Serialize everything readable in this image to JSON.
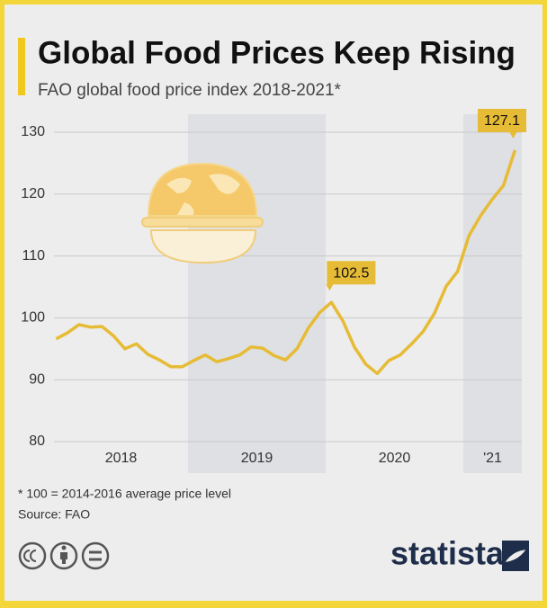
{
  "chart_data": {
    "type": "line",
    "title": "Global Food Prices Keep Rising",
    "subtitle": "FAO global food price index 2018-2021*",
    "categories": [
      null,
      null,
      null,
      null,
      null,
      null,
      null,
      null,
      null,
      null,
      null,
      null,
      null,
      null,
      null,
      null,
      null,
      null,
      null,
      null,
      null,
      null,
      null,
      null,
      null,
      null,
      null,
      null,
      null,
      null,
      null,
      null,
      null,
      null,
      null,
      null,
      null,
      null,
      null,
      null,
      null
    ],
    "period_labels": [
      "2018",
      "2019",
      "2020",
      "'21"
    ],
    "series": [
      {
        "name": "FAO food price index",
        "color": "#e6bb35",
        "values": [
          96.6,
          97.6,
          98.9,
          98.5,
          98.6,
          97.1,
          95.0,
          95.8,
          94.1,
          93.2,
          92.1,
          92.1,
          93.1,
          94.0,
          92.9,
          93.4,
          94.0,
          95.3,
          95.1,
          93.9,
          93.2,
          95.0,
          98.4,
          100.9,
          102.5,
          99.5,
          95.3,
          92.5,
          91.0,
          93.1,
          94.0,
          95.8,
          97.8,
          100.8,
          105.1,
          107.5,
          113.3,
          116.5,
          119.1,
          121.4,
          127.1
        ]
      }
    ],
    "highlight_points": [
      24,
      40
    ],
    "ylim": [
      80,
      130
    ],
    "yticks": [
      80,
      90,
      100,
      110,
      120,
      130
    ],
    "grid": true,
    "notes": [
      "* 100 = 2014-2016 average price level",
      "Source: FAO"
    ],
    "brand": "statista"
  }
}
